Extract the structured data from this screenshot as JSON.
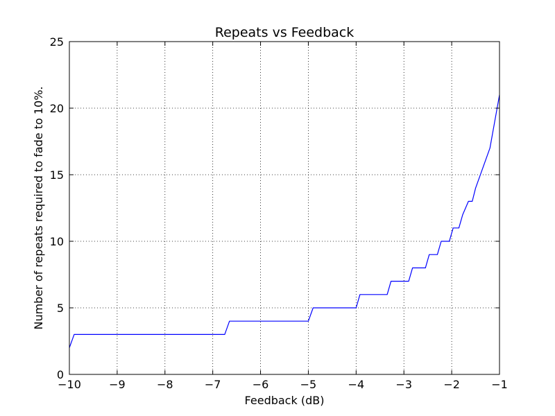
{
  "chart_data": {
    "type": "line",
    "title": "Repeats vs Feedback",
    "xlabel": "Feedback (dB)",
    "ylabel": "Number of repeats required to fade to 10%.",
    "xlim": [
      -10,
      -1
    ],
    "ylim": [
      0,
      25
    ],
    "grid": true,
    "grid_style": "dotted",
    "x_ticks": [
      -10,
      -9,
      -8,
      -7,
      -6,
      -5,
      -4,
      -3,
      -2,
      -1
    ],
    "x_tick_labels": [
      "−10",
      "−9",
      "−8",
      "−7",
      "−6",
      "−5",
      "−4",
      "−3",
      "−2",
      "−1"
    ],
    "y_ticks": [
      0,
      5,
      10,
      15,
      20,
      25
    ],
    "y_tick_labels": [
      "0",
      "5",
      "10",
      "15",
      "20",
      "25"
    ],
    "series": [
      {
        "color": "#0000ff",
        "x": [
          -10.0,
          -9.9,
          -6.75,
          -6.65,
          -5.0,
          -4.9,
          -4.0,
          -3.92,
          -3.35,
          -3.27,
          -2.9,
          -2.82,
          -2.55,
          -2.47,
          -2.3,
          -2.22,
          -2.05,
          -1.97,
          -1.85,
          -1.77,
          -1.65,
          -1.57,
          -1.5,
          -1.2,
          -1.0
        ],
        "y": [
          2,
          3,
          3,
          4,
          4,
          5,
          5,
          6,
          6,
          7,
          7,
          8,
          8,
          9,
          9,
          10,
          10,
          11,
          11,
          12,
          13,
          13,
          14,
          17,
          21
        ]
      }
    ]
  }
}
